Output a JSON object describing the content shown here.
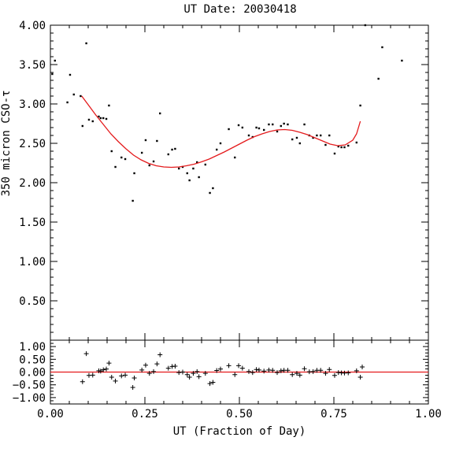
{
  "chart_data": [
    {
      "type": "scatter",
      "title": "UT Date: 20030418",
      "ylabel": "350 micron CSO-τ",
      "xlabel": "",
      "xlim": [
        0,
        1
      ],
      "ylim": [
        0,
        4
      ],
      "yticks": [
        "0.50",
        "1.00",
        "1.50",
        "2.00",
        "2.50",
        "3.00",
        "3.50",
        "4.00"
      ],
      "grid": false,
      "points": [
        [
          0.005,
          3.38
        ],
        [
          0.012,
          3.55
        ],
        [
          0.045,
          3.02
        ],
        [
          0.052,
          3.37
        ],
        [
          0.062,
          3.12
        ],
        [
          0.08,
          3.1
        ],
        [
          0.085,
          2.72
        ],
        [
          0.095,
          3.77
        ],
        [
          0.102,
          2.8
        ],
        [
          0.112,
          2.78
        ],
        [
          0.128,
          2.84
        ],
        [
          0.133,
          2.82
        ],
        [
          0.14,
          2.82
        ],
        [
          0.148,
          2.81
        ],
        [
          0.155,
          2.98
        ],
        [
          0.162,
          2.4
        ],
        [
          0.172,
          2.2
        ],
        [
          0.188,
          2.32
        ],
        [
          0.198,
          2.3
        ],
        [
          0.218,
          1.77
        ],
        [
          0.222,
          2.12
        ],
        [
          0.242,
          2.38
        ],
        [
          0.252,
          2.54
        ],
        [
          0.262,
          2.22
        ],
        [
          0.273,
          2.27
        ],
        [
          0.282,
          2.53
        ],
        [
          0.29,
          2.88
        ],
        [
          0.312,
          2.36
        ],
        [
          0.322,
          2.42
        ],
        [
          0.33,
          2.43
        ],
        [
          0.34,
          2.18
        ],
        [
          0.35,
          2.2
        ],
        [
          0.362,
          2.12
        ],
        [
          0.368,
          2.03
        ],
        [
          0.378,
          2.18
        ],
        [
          0.388,
          2.26
        ],
        [
          0.393,
          2.07
        ],
        [
          0.41,
          2.23
        ],
        [
          0.422,
          1.87
        ],
        [
          0.43,
          1.93
        ],
        [
          0.44,
          2.42
        ],
        [
          0.45,
          2.5
        ],
        [
          0.472,
          2.68
        ],
        [
          0.488,
          2.32
        ],
        [
          0.498,
          2.73
        ],
        [
          0.508,
          2.7
        ],
        [
          0.525,
          2.6
        ],
        [
          0.535,
          2.58
        ],
        [
          0.545,
          2.7
        ],
        [
          0.552,
          2.69
        ],
        [
          0.565,
          2.67
        ],
        [
          0.578,
          2.74
        ],
        [
          0.588,
          2.74
        ],
        [
          0.6,
          2.65
        ],
        [
          0.61,
          2.72
        ],
        [
          0.618,
          2.75
        ],
        [
          0.628,
          2.74
        ],
        [
          0.64,
          2.55
        ],
        [
          0.652,
          2.57
        ],
        [
          0.66,
          2.5
        ],
        [
          0.672,
          2.74
        ],
        [
          0.685,
          2.6
        ],
        [
          0.695,
          2.57
        ],
        [
          0.705,
          2.6
        ],
        [
          0.715,
          2.6
        ],
        [
          0.728,
          2.48
        ],
        [
          0.738,
          2.6
        ],
        [
          0.752,
          2.37
        ],
        [
          0.762,
          2.46
        ],
        [
          0.77,
          2.45
        ],
        [
          0.778,
          2.45
        ],
        [
          0.788,
          2.47
        ],
        [
          0.81,
          2.51
        ],
        [
          0.82,
          2.98
        ],
        [
          0.833,
          4.0
        ],
        [
          0.868,
          3.32
        ],
        [
          0.878,
          3.72
        ],
        [
          0.93,
          3.55
        ]
      ],
      "fit": {
        "x": [
          0.083,
          0.1,
          0.12,
          0.14,
          0.16,
          0.18,
          0.2,
          0.22,
          0.24,
          0.26,
          0.28,
          0.3,
          0.32,
          0.34,
          0.36,
          0.38,
          0.4,
          0.42,
          0.44,
          0.46,
          0.48,
          0.5,
          0.52,
          0.54,
          0.56,
          0.58,
          0.6,
          0.62,
          0.64,
          0.66,
          0.68,
          0.7,
          0.72,
          0.74,
          0.76,
          0.78,
          0.8,
          0.81,
          0.82
        ],
        "y": [
          3.1,
          2.99,
          2.86,
          2.74,
          2.62,
          2.52,
          2.43,
          2.35,
          2.29,
          2.245,
          2.215,
          2.2,
          2.195,
          2.2,
          2.215,
          2.235,
          2.265,
          2.3,
          2.345,
          2.39,
          2.44,
          2.49,
          2.54,
          2.585,
          2.62,
          2.65,
          2.67,
          2.675,
          2.665,
          2.64,
          2.61,
          2.57,
          2.53,
          2.49,
          2.47,
          2.48,
          2.54,
          2.62,
          2.78
        ]
      }
    },
    {
      "type": "scatter",
      "title": "",
      "ylabel": "",
      "xlabel": "UT (Fraction of Day)",
      "xlim": [
        0,
        1
      ],
      "ylim": [
        -1.25,
        1.25
      ],
      "xticks": [
        "0.00",
        "0.25",
        "0.50",
        "0.75",
        "1.00"
      ],
      "yticks": [
        "−1.00",
        "−0.50",
        "0.00",
        "0.50",
        "1.00"
      ],
      "grid": false,
      "points": [
        [
          0.085,
          -0.38
        ],
        [
          0.095,
          0.72
        ],
        [
          0.102,
          -0.13
        ],
        [
          0.112,
          -0.12
        ],
        [
          0.128,
          0.05
        ],
        [
          0.133,
          0.04
        ],
        [
          0.14,
          0.09
        ],
        [
          0.148,
          0.12
        ],
        [
          0.155,
          0.35
        ],
        [
          0.162,
          -0.2
        ],
        [
          0.172,
          -0.35
        ],
        [
          0.188,
          -0.15
        ],
        [
          0.198,
          -0.12
        ],
        [
          0.218,
          -0.6
        ],
        [
          0.222,
          -0.23
        ],
        [
          0.242,
          0.08
        ],
        [
          0.252,
          0.27
        ],
        [
          0.262,
          -0.05
        ],
        [
          0.273,
          0.02
        ],
        [
          0.282,
          0.32
        ],
        [
          0.29,
          0.68
        ],
        [
          0.312,
          0.15
        ],
        [
          0.322,
          0.22
        ],
        [
          0.33,
          0.23
        ],
        [
          0.34,
          -0.02
        ],
        [
          0.35,
          0.0
        ],
        [
          0.362,
          -0.1
        ],
        [
          0.368,
          -0.2
        ],
        [
          0.378,
          -0.05
        ],
        [
          0.388,
          0.02
        ],
        [
          0.393,
          -0.18
        ],
        [
          0.41,
          -0.05
        ],
        [
          0.422,
          -0.45
        ],
        [
          0.43,
          -0.4
        ],
        [
          0.44,
          0.06
        ],
        [
          0.45,
          0.12
        ],
        [
          0.472,
          0.25
        ],
        [
          0.488,
          -0.1
        ],
        [
          0.498,
          0.25
        ],
        [
          0.508,
          0.15
        ],
        [
          0.525,
          0.02
        ],
        [
          0.535,
          -0.02
        ],
        [
          0.545,
          0.1
        ],
        [
          0.552,
          0.08
        ],
        [
          0.565,
          0.04
        ],
        [
          0.578,
          0.08
        ],
        [
          0.588,
          0.07
        ],
        [
          0.6,
          -0.02
        ],
        [
          0.61,
          0.05
        ],
        [
          0.618,
          0.07
        ],
        [
          0.628,
          0.07
        ],
        [
          0.64,
          -0.1
        ],
        [
          0.652,
          -0.05
        ],
        [
          0.66,
          -0.12
        ],
        [
          0.672,
          0.13
        ],
        [
          0.685,
          0.01
        ],
        [
          0.695,
          0.02
        ],
        [
          0.705,
          0.07
        ],
        [
          0.715,
          0.07
        ],
        [
          0.728,
          -0.05
        ],
        [
          0.738,
          0.1
        ],
        [
          0.752,
          -0.13
        ],
        [
          0.762,
          -0.02
        ],
        [
          0.77,
          -0.03
        ],
        [
          0.778,
          -0.04
        ],
        [
          0.788,
          -0.03
        ],
        [
          0.81,
          0.05
        ],
        [
          0.82,
          -0.2
        ],
        [
          0.825,
          0.2
        ]
      ],
      "zero_line": 0
    }
  ],
  "colors": {
    "fit": "#e41a1c",
    "axes": "#000000",
    "points": "#000000"
  }
}
